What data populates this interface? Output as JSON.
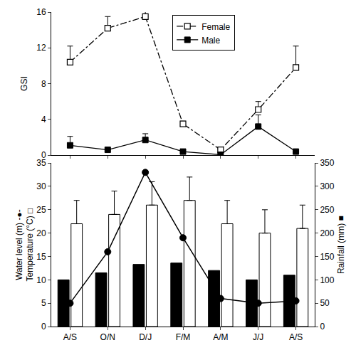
{
  "chart_data": [
    {
      "type": "line",
      "y_label": "GSI",
      "categories": [
        "A/S",
        "O/N",
        "D/J",
        "F/M",
        "A/M",
        "J/J",
        "A/S"
      ],
      "ylim": [
        0,
        16
      ],
      "yticks": [
        0,
        4,
        8,
        12,
        16
      ],
      "grid": false,
      "legend": "top",
      "tick_labels": "y",
      "series": [
        {
          "name": "Female",
          "color": "#000000",
          "line_style": "dashdot",
          "marker": "square-open",
          "values": [
            10.4,
            14.2,
            15.5,
            3.5,
            0.6,
            5.1,
            9.8
          ],
          "errors": [
            1.8,
            1.3,
            0.8,
            0.3,
            0.2,
            0.9,
            2.4
          ]
        },
        {
          "name": "Male",
          "color": "#000000",
          "line_style": "solid",
          "marker": "square",
          "values": [
            1.1,
            0.6,
            1.7,
            0.4,
            0.05,
            3.2,
            0.4
          ],
          "errors": [
            1.0,
            0,
            0.7,
            0,
            0,
            1.3,
            0
          ]
        }
      ]
    },
    {
      "type": "bar",
      "y_label": [
        "Water level (m) -●-",
        "Temperature (°C) □"
      ],
      "y2_label": "Rainfall (mm) ■",
      "categories": [
        "A/S",
        "O/N",
        "D/J",
        "F/M",
        "A/M",
        "J/J",
        "A/S"
      ],
      "ylim": [
        0,
        35
      ],
      "yticks": [
        0,
        5,
        10,
        15,
        20,
        25,
        30,
        35
      ],
      "y2lim": [
        0,
        350
      ],
      "y2ticks": [
        0,
        50,
        100,
        150,
        200,
        250,
        300,
        350
      ],
      "grid": false,
      "series": [
        {
          "type": "bar",
          "color": "#000000",
          "axis": "y2",
          "values": [
            100,
            115,
            133,
            136,
            120,
            100,
            110
          ]
        },
        {
          "type": "bar",
          "color": "#ffffff",
          "axis": "y",
          "values": [
            22,
            24,
            26,
            27,
            22,
            20,
            21
          ],
          "errors": [
            5,
            5,
            5,
            5,
            5,
            5,
            5
          ]
        },
        {
          "type": "line",
          "color": "#000000",
          "axis": "y",
          "marker": "circle",
          "line_style": "solid",
          "values": [
            5,
            16,
            33,
            19,
            6,
            5,
            5.5
          ]
        }
      ]
    }
  ]
}
